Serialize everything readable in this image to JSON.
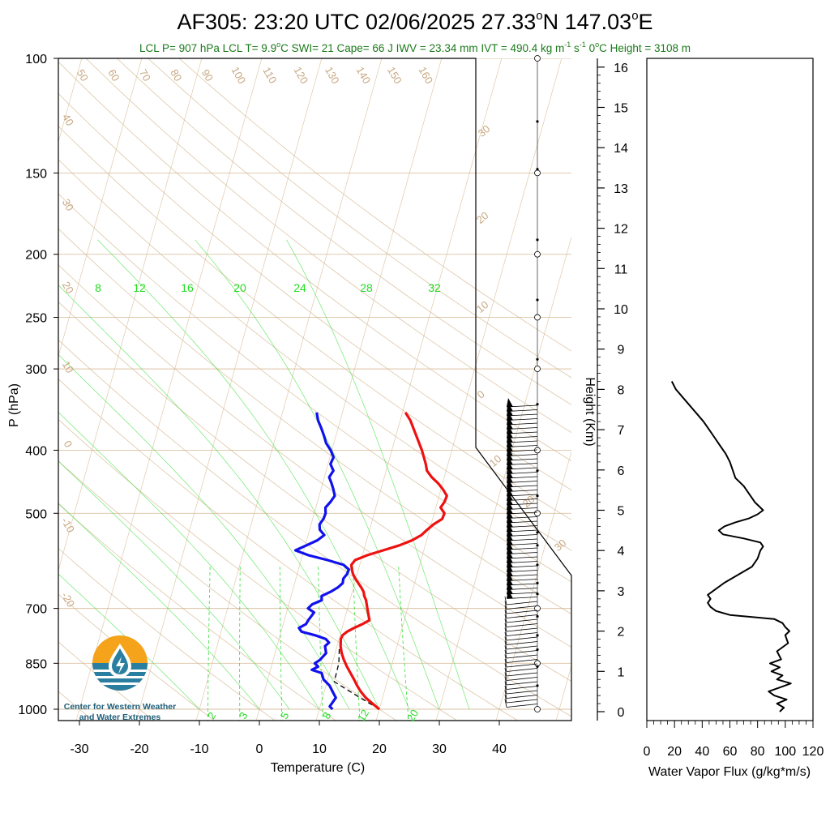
{
  "title": "AF305: 23:20 UTC 02/06/2025  27.33°N 147.03°E",
  "title_parts": {
    "main": "AF305: 23:20 UTC 02/06/2025  27.33",
    "lat_unit": "N 147.03",
    "lon_unit": "E",
    "degree": "o"
  },
  "stats_parts": {
    "a": "LCL P= 907 hPa  LCL T= 9.9",
    "b": "C  SWI= 21  Cape= 66 J  IWV = 23.34 mm  IVT = 490.4 kg m",
    "c": " s",
    "d": "  0",
    "e": "C Height = 3108 m",
    "sup_minus1": "-1",
    "sup_o": "o"
  },
  "colors": {
    "temperature": "#ee1111",
    "dewpoint": "#1111ee",
    "mixing_ratio": "#22dd22",
    "adiabat": "#d2b48c",
    "stats_text": "#1a7a1a",
    "logo_orange": "#f5a31a",
    "logo_teal": "#2a7fa0"
  },
  "logo": {
    "line1": "Center for Western Weather",
    "line2": "and Water Extremes",
    "icon": "water-drop-icon"
  },
  "chart_data": [
    {
      "type": "line",
      "subtype": "skew-t",
      "xlabel": "Temperature (C)",
      "ylabel": "P (hPa)",
      "x_ticks": [
        -30,
        -20,
        -10,
        0,
        10,
        20,
        30,
        40
      ],
      "y_ticks": [
        100,
        150,
        200,
        250,
        300,
        400,
        500,
        700,
        850,
        1000
      ],
      "xlim": [
        -33,
        50
      ],
      "ylim": [
        1050,
        100
      ],
      "y_scale": "log",
      "mixing_ratio_labels_top": [
        "8",
        "12",
        "16",
        "20",
        "24",
        "28",
        "32"
      ],
      "mixing_ratio_labels_bottom": [
        "2",
        "3",
        "5",
        "8",
        "12",
        "20"
      ],
      "dry_adiabat_labels": [
        "50",
        "60",
        "70",
        "80",
        "90",
        "100",
        "110",
        "120",
        "130",
        "140",
        "150",
        "160"
      ],
      "dry_adiabat_left_labels": [
        "40",
        "30",
        "20",
        "10",
        "0",
        "-10",
        "-20"
      ],
      "moist_adiabat_labels": [
        "30",
        "20",
        "10",
        "0",
        "10",
        "20",
        "30"
      ],
      "series": [
        {
          "name": "Temperature",
          "p": [
            1000,
            980,
            960,
            940,
            920,
            900,
            880,
            860,
            840,
            820,
            800,
            780,
            770,
            760,
            750,
            740,
            730,
            720,
            700,
            690,
            680,
            670,
            660,
            650,
            640,
            630,
            620,
            610,
            600,
            590,
            580,
            570,
            560,
            550,
            540,
            530,
            520,
            510,
            500,
            490,
            480,
            470,
            460,
            450,
            440,
            430,
            420,
            400,
            380,
            360,
            350
          ],
          "t": [
            20.0,
            18.6,
            17.2,
            16.1,
            15.2,
            14.4,
            13.5,
            12.6,
            11.8,
            11.1,
            10.6,
            10.3,
            10.4,
            11.0,
            12.0,
            13.2,
            14.2,
            13.9,
            13.3,
            13.0,
            12.7,
            12.2,
            11.9,
            11.3,
            10.6,
            9.9,
            9.3,
            8.9,
            8.6,
            9.0,
            10.8,
            13.2,
            15.7,
            17.6,
            18.9,
            19.6,
            20.4,
            21.6,
            21.7,
            20.8,
            21.2,
            21.3,
            20.4,
            19.3,
            17.9,
            16.8,
            16.3,
            15.0,
            13.4,
            11.7,
            10.5
          ]
        },
        {
          "name": "Dewpoint",
          "p": [
            1000,
            990,
            980,
            960,
            940,
            920,
            900,
            880,
            870,
            860,
            850,
            840,
            820,
            800,
            790,
            780,
            770,
            760,
            750,
            740,
            730,
            720,
            710,
            700,
            690,
            680,
            670,
            660,
            650,
            640,
            630,
            620,
            610,
            600,
            590,
            580,
            570,
            560,
            550,
            540,
            530,
            520,
            510,
            500,
            490,
            480,
            470,
            460,
            450,
            440,
            430,
            420,
            410,
            400,
            390,
            380,
            370,
            360,
            350
          ],
          "t": [
            12.2,
            11.6,
            11.8,
            12.2,
            11.4,
            10.6,
            9.3,
            8.7,
            6.9,
            7.8,
            7.1,
            7.8,
            8.5,
            8.0,
            8.5,
            7.8,
            5.9,
            3.4,
            2.8,
            3.8,
            4.0,
            4.3,
            4.6,
            3.4,
            3.9,
            5.3,
            5.1,
            6.4,
            7.4,
            8.0,
            7.9,
            8.3,
            8.4,
            7.3,
            4.4,
            1.0,
            -1.4,
            0.2,
            1.8,
            2.7,
            1.7,
            1.4,
            1.8,
            1.9,
            1.6,
            2.2,
            2.6,
            2.1,
            1.5,
            0.8,
            1.2,
            0.4,
            0.6,
            -0.2,
            -1.3,
            -2.0,
            -2.8,
            -3.7,
            -4.3
          ]
        },
        {
          "name": "Parcel",
          "p": [
            1000,
            950,
            907,
            850,
            800
          ],
          "t": [
            20.0,
            15.3,
            11.2,
            11.1,
            10.4
          ]
        }
      ]
    },
    {
      "type": "line",
      "xlabel": "Water Vapor Flux (g/kg*m/s)",
      "ylabel": "Height (Km)",
      "x_ticks": [
        0,
        20,
        40,
        60,
        80,
        100,
        120
      ],
      "y_ticks": [
        0,
        1,
        2,
        3,
        4,
        5,
        6,
        7,
        8,
        9,
        10,
        11,
        12,
        13,
        14,
        15,
        16
      ],
      "xlim": [
        0,
        120
      ],
      "ylim": [
        0,
        16.5
      ],
      "series": [
        {
          "name": "Water Vapor Flux",
          "height": [
            0.0,
            0.1,
            0.2,
            0.3,
            0.4,
            0.5,
            0.6,
            0.7,
            0.8,
            0.9,
            1.0,
            1.1,
            1.2,
            1.3,
            1.5,
            1.7,
            1.9,
            2.0,
            2.1,
            2.2,
            2.3,
            2.4,
            2.5,
            2.6,
            2.7,
            2.8,
            2.9,
            3.0,
            3.2,
            3.4,
            3.6,
            3.8,
            4.0,
            4.1,
            4.2,
            4.3,
            4.4,
            4.5,
            4.6,
            4.7,
            4.8,
            4.9,
            5.0,
            5.1,
            5.2,
            5.4,
            5.6,
            5.8,
            6.0,
            6.2,
            6.4,
            6.6,
            6.8,
            7.0,
            7.2,
            7.4,
            7.6,
            7.8,
            8.0,
            8.2
          ],
          "flux": [
            96.0,
            99.0,
            94.0,
            101.0,
            92.0,
            88.0,
            96.0,
            104.0,
            94.0,
            98.0,
            90.0,
            96.0,
            89.0,
            97.0,
            94.0,
            102.0,
            100.0,
            103.0,
            100.0,
            98.0,
            92.0,
            60.0,
            50.0,
            46.0,
            44.0,
            46.0,
            44.0,
            48.0,
            56.0,
            66.0,
            76.0,
            80.0,
            82.0,
            84.0,
            82.0,
            70.0,
            55.0,
            52.0,
            56.0,
            64.0,
            74.0,
            80.0,
            84.0,
            81.0,
            78.0,
            74.0,
            70.0,
            64.0,
            62.0,
            60.0,
            57.0,
            53.0,
            49.0,
            45.0,
            41.0,
            36.0,
            31.0,
            26.0,
            21.0,
            18.0
          ]
        }
      ]
    }
  ]
}
